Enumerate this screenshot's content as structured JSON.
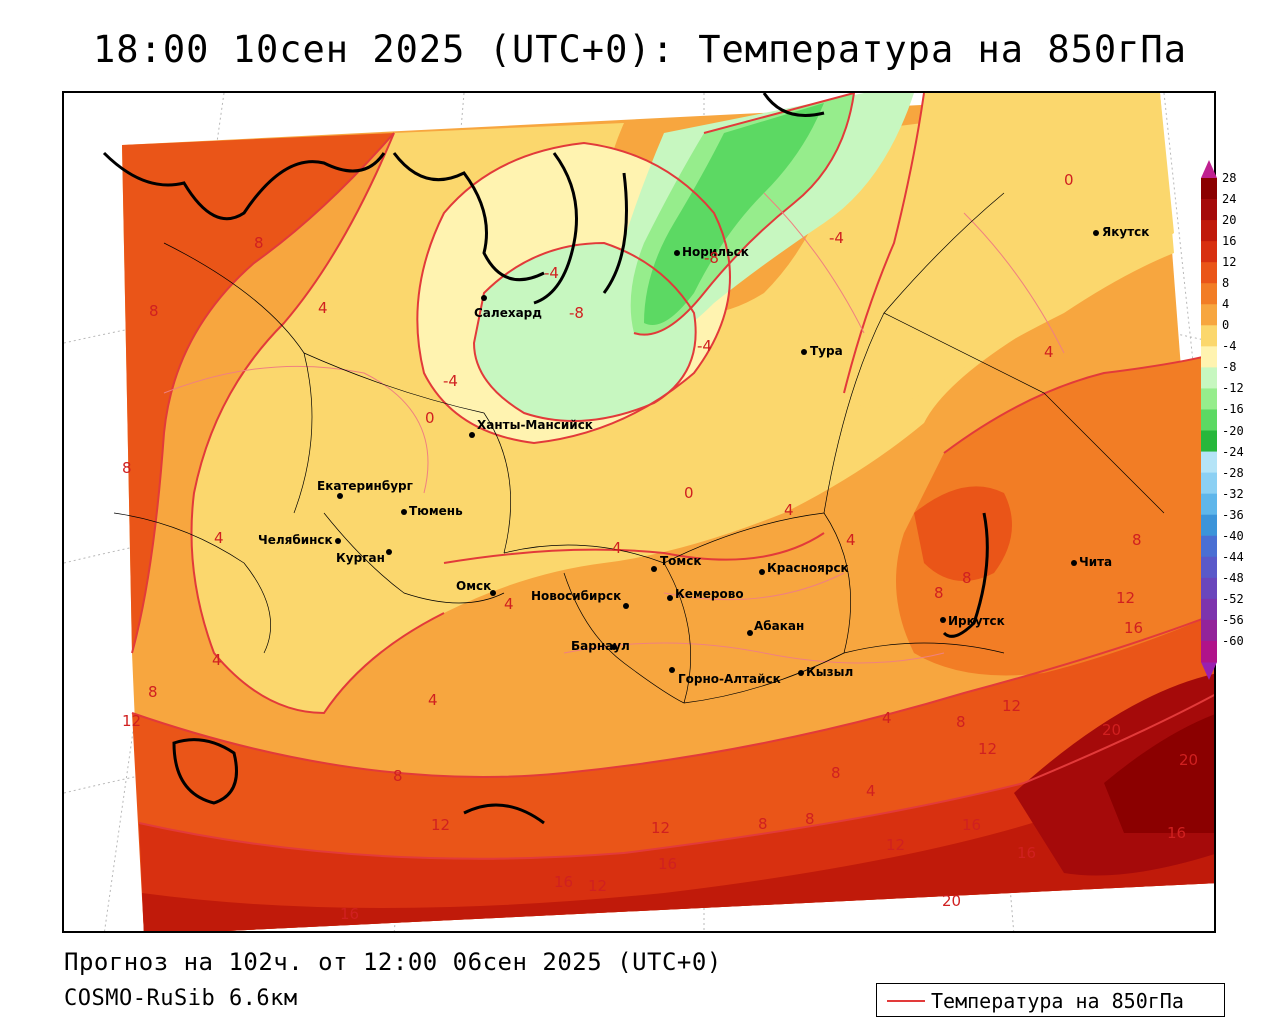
{
  "title": "18:00 10сен 2025 (UTC+0): Температура на 850гПа",
  "footer": {
    "forecast": "Прогноз на 102ч. от 12:00 06сен 2025 (UTC+0)",
    "model": "COSMO-RuSib 6.6км"
  },
  "legend": {
    "label": "Температура на 850гПа",
    "line_color": "#e23a3a"
  },
  "colorbar": {
    "ticks": [
      "28",
      "24",
      "20",
      "16",
      "12",
      "8",
      "4",
      "0",
      "-4",
      "-8",
      "-12",
      "-16",
      "-20",
      "-24",
      "-28",
      "-32",
      "-36",
      "-40",
      "-44",
      "-48",
      "-52",
      "-56",
      "-60"
    ],
    "colors": [
      "#8b0000",
      "#a50a0a",
      "#c01a0a",
      "#d83010",
      "#ea5518",
      "#f27d25",
      "#f7a63f",
      "#fbd76d",
      "#fff3b0",
      "#c7f7c0",
      "#96ed8c",
      "#5cd963",
      "#27b73b",
      "#b5e4f7",
      "#8cd0f3",
      "#5fb6ea",
      "#3c94d9",
      "#4a6fd3",
      "#5a59c9",
      "#6a46bc",
      "#7d34ad",
      "#93239a",
      "#b0138a"
    ]
  },
  "cities": [
    {
      "name": "Норильск"
    },
    {
      "name": "Якутск"
    },
    {
      "name": "Салехард"
    },
    {
      "name": "Тура"
    },
    {
      "name": "Ханты-Мансийск"
    },
    {
      "name": "Екатеринбург"
    },
    {
      "name": "Тюмень"
    },
    {
      "name": "Челябинск"
    },
    {
      "name": "Курган"
    },
    {
      "name": "Томск"
    },
    {
      "name": "Красноярск"
    },
    {
      "name": "Омск"
    },
    {
      "name": "Новосибирск"
    },
    {
      "name": "Кемерово"
    },
    {
      "name": "Абакан"
    },
    {
      "name": "Иркутск"
    },
    {
      "name": "Чита"
    },
    {
      "name": "Барнаул"
    },
    {
      "name": "Горно-Алтайск"
    },
    {
      "name": "Кызыл"
    }
  ],
  "contour_labels": [
    "8",
    "4",
    "8",
    "8",
    "4",
    "4",
    "8",
    "12",
    "0",
    "-4",
    "0",
    "-4",
    "-8",
    "-8",
    "-4",
    "-4",
    "0",
    "4",
    "4",
    "4",
    "4",
    "4",
    "8",
    "8",
    "8",
    "12",
    "16",
    "4",
    "4",
    "8",
    "8",
    "12",
    "12",
    "20",
    "20",
    "16",
    "16",
    "16",
    "12",
    "12",
    "12",
    "16",
    "16",
    "16",
    "20",
    "12",
    "8",
    "8",
    "4",
    "8"
  ]
}
